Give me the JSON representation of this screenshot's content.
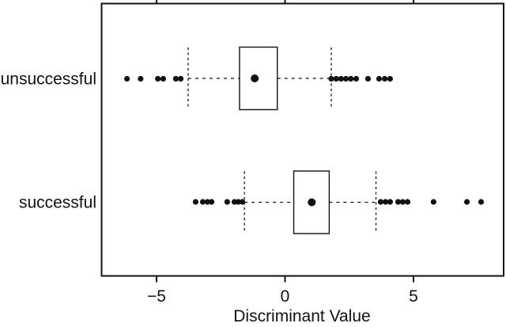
{
  "figure": {
    "kind": "statistical-boxplot-figure"
  },
  "chart_data": {
    "type": "boxplot",
    "orientation": "horizontal",
    "title": "",
    "xlabel": "Discriminant Value",
    "ylabel": "",
    "xlim": [
      -7.15,
      8.55
    ],
    "xticks": [
      -5,
      0,
      5
    ],
    "xtick_labels": [
      "−5",
      "0",
      "5"
    ],
    "categories": [
      "unsuccessful",
      "successful"
    ],
    "grid": false,
    "legend": null,
    "colors": {
      "stroke": "#111111",
      "fill": "#ffffff"
    },
    "series": [
      {
        "name": "unsuccessful",
        "whisker_low": -3.77,
        "q1": -1.77,
        "median": -1.18,
        "q3": -0.3,
        "whisker_high": 1.8,
        "outliers": [
          -6.15,
          -5.62,
          -4.95,
          -4.74,
          -4.25,
          -4.06,
          1.8,
          1.99,
          2.18,
          2.37,
          2.56,
          2.77,
          3.23,
          3.66,
          3.88,
          4.09
        ]
      },
      {
        "name": "successful",
        "whisker_low": -1.58,
        "q1": 0.34,
        "median": 1.04,
        "q3": 1.72,
        "whisker_high": 3.54,
        "outliers": [
          -3.48,
          -3.2,
          -3.02,
          -2.86,
          -2.25,
          -1.97,
          -1.82,
          -1.66,
          3.72,
          3.91,
          4.09,
          4.4,
          4.58,
          4.77,
          5.78,
          7.08,
          7.63
        ]
      }
    ]
  }
}
